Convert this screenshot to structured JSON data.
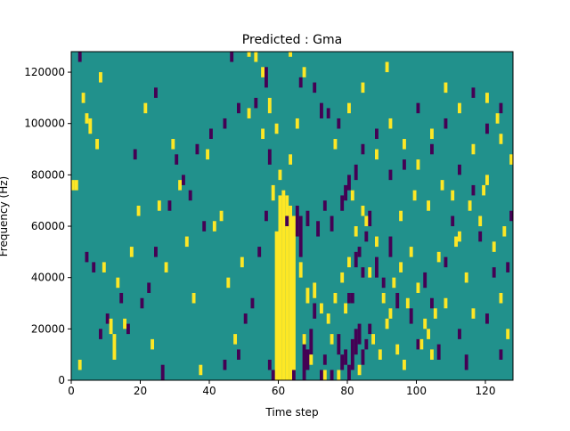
{
  "chart_data": {
    "type": "heatmap",
    "title": "Predicted : Gma",
    "xlabel": "Time step",
    "ylabel": "Frequency (Hz)",
    "xlim": [
      0,
      128
    ],
    "ylim": [
      0,
      128000
    ],
    "x_ticks": [
      "0",
      "20",
      "40",
      "60",
      "80",
      "100",
      "120"
    ],
    "y_ticks": [
      "0",
      "20000",
      "40000",
      "60000",
      "80000",
      "100000",
      "120000"
    ],
    "colormap": "viridis",
    "colors": {
      "background": "#21918c",
      "high": "#fde725",
      "low": "#440154"
    },
    "grid": false,
    "legend": "none",
    "grid_shape": {
      "time_steps": 128,
      "frequency_bins": 128
    },
    "background_value": 0,
    "cells_note": "Each cell is [time_step, bin_start, bin_end, value] with value 1 = yellow, -1 = dark purple; bins span 1000 Hz",
    "cells": [
      [
        60,
        0,
        72,
        1
      ],
      [
        61,
        0,
        74,
        1
      ],
      [
        62,
        0,
        72,
        1
      ],
      [
        63,
        0,
        68,
        1
      ],
      [
        64,
        0,
        64,
        1
      ],
      [
        59,
        0,
        58,
        1
      ],
      [
        58,
        0,
        4,
        -1
      ],
      [
        57,
        4,
        8,
        -1
      ],
      [
        64,
        0,
        4,
        -1
      ],
      [
        67,
        0,
        18,
        -1
      ],
      [
        68,
        4,
        12,
        -1
      ],
      [
        69,
        10,
        20,
        -1
      ],
      [
        70,
        24,
        30,
        -1
      ],
      [
        72,
        0,
        4,
        -1
      ],
      [
        73,
        6,
        10,
        -1
      ],
      [
        75,
        0,
        4,
        -1
      ],
      [
        77,
        10,
        18,
        -1
      ],
      [
        78,
        4,
        10,
        -1
      ],
      [
        79,
        6,
        12,
        -1
      ],
      [
        80,
        0,
        6,
        -1
      ],
      [
        81,
        4,
        16,
        -1
      ],
      [
        82,
        10,
        20,
        -1
      ],
      [
        83,
        14,
        22,
        -1
      ],
      [
        84,
        6,
        12,
        -1
      ],
      [
        85,
        12,
        16,
        -1
      ],
      [
        86,
        18,
        22,
        -1
      ],
      [
        80,
        30,
        34,
        -1
      ],
      [
        81,
        30,
        34,
        -1
      ],
      [
        82,
        44,
        50,
        -1
      ],
      [
        83,
        48,
        52,
        -1
      ],
      [
        84,
        40,
        44,
        -1
      ],
      [
        85,
        54,
        58,
        -1
      ],
      [
        86,
        60,
        66,
        -1
      ],
      [
        88,
        40,
        48,
        -1
      ],
      [
        90,
        36,
        40,
        -1
      ],
      [
        92,
        48,
        56,
        -1
      ],
      [
        94,
        28,
        34,
        -1
      ],
      [
        98,
        22,
        28,
        -1
      ],
      [
        100,
        12,
        16,
        -1
      ],
      [
        102,
        36,
        42,
        -1
      ],
      [
        104,
        28,
        32,
        -1
      ],
      [
        106,
        8,
        14,
        -1
      ],
      [
        108,
        44,
        48,
        -1
      ],
      [
        110,
        60,
        64,
        -1
      ],
      [
        112,
        16,
        20,
        -1
      ],
      [
        114,
        4,
        10,
        -1
      ],
      [
        116,
        72,
        76,
        -1
      ],
      [
        118,
        54,
        58,
        -1
      ],
      [
        120,
        22,
        26,
        -1
      ],
      [
        122,
        40,
        44,
        -1
      ],
      [
        124,
        8,
        12,
        -1
      ],
      [
        126,
        42,
        46,
        -1
      ],
      [
        127,
        62,
        66,
        -1
      ],
      [
        62,
        60,
        64,
        -1
      ],
      [
        65,
        56,
        68,
        -1
      ],
      [
        66,
        48,
        64,
        -1
      ],
      [
        68,
        60,
        66,
        -1
      ],
      [
        71,
        56,
        62,
        -1
      ],
      [
        73,
        66,
        70,
        -1
      ],
      [
        75,
        58,
        64,
        -1
      ],
      [
        78,
        66,
        72,
        -1
      ],
      [
        79,
        70,
        76,
        -1
      ],
      [
        80,
        74,
        80,
        -1
      ],
      [
        82,
        78,
        84,
        -1
      ],
      [
        84,
        88,
        92,
        -1
      ],
      [
        88,
        94,
        98,
        -1
      ],
      [
        92,
        78,
        82,
        -1
      ],
      [
        96,
        82,
        86,
        -1
      ],
      [
        100,
        104,
        108,
        -1
      ],
      [
        104,
        88,
        92,
        -1
      ],
      [
        108,
        98,
        102,
        -1
      ],
      [
        112,
        80,
        84,
        -1
      ],
      [
        116,
        110,
        114,
        -1
      ],
      [
        120,
        96,
        100,
        -1
      ],
      [
        124,
        104,
        108,
        -1
      ],
      [
        72,
        102,
        108,
        -1
      ],
      [
        74,
        102,
        106,
        -1
      ],
      [
        77,
        98,
        102,
        -1
      ],
      [
        70,
        112,
        116,
        -1
      ],
      [
        66,
        114,
        118,
        -1
      ],
      [
        53,
        106,
        110,
        -1
      ],
      [
        48,
        104,
        108,
        -1
      ],
      [
        44,
        98,
        102,
        -1
      ],
      [
        40,
        94,
        98,
        -1
      ],
      [
        36,
        88,
        92,
        -1
      ],
      [
        32,
        76,
        80,
        -1
      ],
      [
        28,
        66,
        70,
        -1
      ],
      [
        24,
        48,
        52,
        -1
      ],
      [
        20,
        28,
        32,
        -1
      ],
      [
        16,
        18,
        22,
        -1
      ],
      [
        12,
        12,
        16,
        -1
      ],
      [
        8,
        16,
        20,
        -1
      ],
      [
        4,
        46,
        50,
        -1
      ],
      [
        2,
        124,
        128,
        -1
      ],
      [
        46,
        124,
        128,
        -1
      ],
      [
        56,
        114,
        122,
        -1
      ],
      [
        57,
        84,
        90,
        -1
      ],
      [
        56,
        62,
        66,
        -1
      ],
      [
        54,
        48,
        52,
        -1
      ],
      [
        52,
        28,
        32,
        -1
      ],
      [
        50,
        22,
        26,
        -1
      ],
      [
        48,
        8,
        12,
        -1
      ],
      [
        44,
        4,
        8,
        -1
      ],
      [
        38,
        58,
        62,
        -1
      ],
      [
        34,
        70,
        74,
        -1
      ],
      [
        30,
        84,
        88,
        -1
      ],
      [
        26,
        0,
        6,
        -1
      ],
      [
        24,
        110,
        114,
        -1
      ],
      [
        22,
        34,
        38,
        -1
      ],
      [
        18,
        86,
        90,
        -1
      ],
      [
        14,
        30,
        34,
        -1
      ],
      [
        10,
        22,
        26,
        -1
      ],
      [
        6,
        42,
        46,
        -1
      ],
      [
        58,
        70,
        76,
        1
      ],
      [
        60,
        78,
        82,
        1
      ],
      [
        57,
        104,
        110,
        1
      ],
      [
        55,
        94,
        98,
        1
      ],
      [
        53,
        124,
        128,
        1
      ],
      [
        51,
        102,
        106,
        1
      ],
      [
        49,
        44,
        48,
        1
      ],
      [
        47,
        14,
        18,
        1
      ],
      [
        45,
        36,
        40,
        1
      ],
      [
        43,
        62,
        66,
        1
      ],
      [
        41,
        58,
        62,
        1
      ],
      [
        39,
        86,
        90,
        1
      ],
      [
        37,
        2,
        6,
        1
      ],
      [
        35,
        30,
        34,
        1
      ],
      [
        33,
        52,
        56,
        1
      ],
      [
        31,
        74,
        78,
        1
      ],
      [
        29,
        90,
        94,
        1
      ],
      [
        27,
        42,
        46,
        1
      ],
      [
        25,
        66,
        70,
        1
      ],
      [
        23,
        12,
        16,
        1
      ],
      [
        21,
        104,
        108,
        1
      ],
      [
        19,
        64,
        68,
        1
      ],
      [
        17,
        48,
        52,
        1
      ],
      [
        15,
        20,
        24,
        1
      ],
      [
        13,
        36,
        40,
        1
      ],
      [
        11,
        18,
        24,
        1
      ],
      [
        12,
        8,
        18,
        1
      ],
      [
        9,
        42,
        46,
        1
      ],
      [
        7,
        90,
        94,
        1
      ],
      [
        5,
        96,
        102,
        1
      ],
      [
        3,
        108,
        112,
        1
      ],
      [
        2,
        4,
        8,
        1
      ],
      [
        1,
        74,
        78,
        1
      ],
      [
        0,
        74,
        78,
        1
      ],
      [
        8,
        116,
        120,
        1
      ],
      [
        4,
        100,
        104,
        1
      ],
      [
        66,
        40,
        46,
        1
      ],
      [
        68,
        30,
        36,
        1
      ],
      [
        70,
        32,
        38,
        1
      ],
      [
        72,
        26,
        30,
        1
      ],
      [
        74,
        22,
        26,
        1
      ],
      [
        76,
        30,
        34,
        1
      ],
      [
        78,
        38,
        42,
        1
      ],
      [
        80,
        44,
        48,
        1
      ],
      [
        82,
        56,
        60,
        1
      ],
      [
        84,
        64,
        68,
        1
      ],
      [
        86,
        40,
        44,
        1
      ],
      [
        88,
        52,
        56,
        1
      ],
      [
        90,
        30,
        34,
        1
      ],
      [
        92,
        24,
        28,
        1
      ],
      [
        94,
        10,
        14,
        1
      ],
      [
        96,
        4,
        8,
        1
      ],
      [
        98,
        48,
        52,
        1
      ],
      [
        100,
        34,
        38,
        1
      ],
      [
        102,
        20,
        24,
        1
      ],
      [
        104,
        8,
        12,
        1
      ],
      [
        106,
        46,
        50,
        1
      ],
      [
        108,
        28,
        32,
        1
      ],
      [
        110,
        70,
        74,
        1
      ],
      [
        112,
        54,
        58,
        1
      ],
      [
        114,
        38,
        42,
        1
      ],
      [
        116,
        24,
        28,
        1
      ],
      [
        118,
        60,
        64,
        1
      ],
      [
        120,
        76,
        80,
        1
      ],
      [
        122,
        50,
        54,
        1
      ],
      [
        124,
        30,
        34,
        1
      ],
      [
        126,
        16,
        20,
        1
      ],
      [
        127,
        84,
        88,
        1
      ],
      [
        76,
        90,
        94,
        1
      ],
      [
        80,
        104,
        108,
        1
      ],
      [
        84,
        112,
        116,
        1
      ],
      [
        88,
        86,
        90,
        1
      ],
      [
        92,
        98,
        102,
        1
      ],
      [
        96,
        90,
        94,
        1
      ],
      [
        100,
        82,
        86,
        1
      ],
      [
        104,
        94,
        98,
        1
      ],
      [
        108,
        112,
        116,
        1
      ],
      [
        112,
        104,
        108,
        1
      ],
      [
        116,
        88,
        92,
        1
      ],
      [
        120,
        108,
        112,
        1
      ],
      [
        124,
        92,
        96,
        1
      ],
      [
        65,
        98,
        102,
        1
      ],
      [
        67,
        118,
        122,
        1
      ],
      [
        63,
        84,
        88,
        1
      ],
      [
        59,
        96,
        100,
        1
      ],
      [
        55,
        118,
        122,
        1
      ],
      [
        51,
        126,
        128,
        1
      ],
      [
        63,
        126,
        128,
        1
      ],
      [
        81,
        70,
        74,
        1
      ],
      [
        85,
        60,
        64,
        1
      ],
      [
        91,
        120,
        124,
        1
      ],
      [
        95,
        62,
        66,
        1
      ],
      [
        99,
        70,
        74,
        1
      ],
      [
        103,
        66,
        70,
        1
      ],
      [
        107,
        74,
        78,
        1
      ],
      [
        111,
        52,
        56,
        1
      ],
      [
        115,
        66,
        70,
        1
      ],
      [
        119,
        72,
        76,
        1
      ],
      [
        123,
        100,
        104,
        1
      ],
      [
        125,
        56,
        60,
        1
      ],
      [
        67,
        14,
        18,
        1
      ],
      [
        69,
        6,
        10,
        1
      ],
      [
        73,
        0,
        4,
        1
      ],
      [
        75,
        14,
        18,
        1
      ],
      [
        77,
        0,
        4,
        1
      ],
      [
        79,
        26,
        30,
        1
      ],
      [
        83,
        2,
        6,
        1
      ],
      [
        87,
        14,
        18,
        1
      ],
      [
        89,
        8,
        12,
        1
      ],
      [
        91,
        20,
        24,
        1
      ],
      [
        93,
        36,
        40,
        1
      ],
      [
        95,
        42,
        46,
        1
      ],
      [
        97,
        28,
        32,
        1
      ],
      [
        101,
        12,
        16,
        1
      ],
      [
        103,
        16,
        20,
        1
      ],
      [
        105,
        24,
        28,
        1
      ]
    ]
  }
}
